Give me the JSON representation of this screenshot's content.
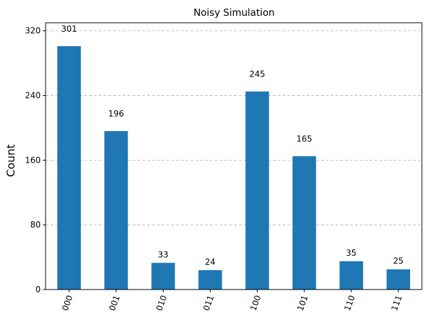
{
  "chart_data": {
    "type": "bar",
    "title": "Noisy Simulation",
    "xlabel": "",
    "ylabel": "Count",
    "categories": [
      "000",
      "001",
      "010",
      "011",
      "100",
      "101",
      "110",
      "111"
    ],
    "values": [
      301,
      196,
      33,
      24,
      245,
      165,
      35,
      25
    ],
    "ylim": [
      0,
      330
    ],
    "yticks": [
      0,
      80,
      160,
      240,
      320
    ],
    "grid": true,
    "bar_color": "#1f77b4",
    "xtick_rotation_deg": 70
  }
}
